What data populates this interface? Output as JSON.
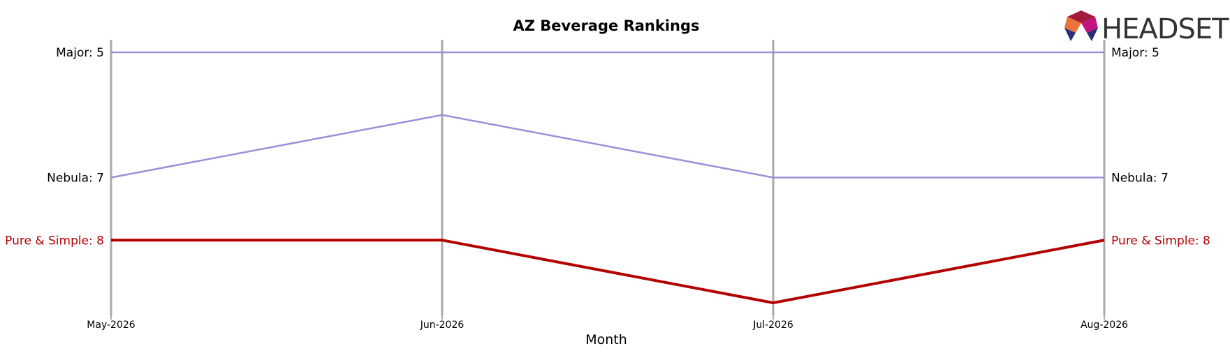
{
  "chart_data": {
    "type": "line",
    "title": "AZ Beverage Rankings",
    "xlabel": "Month",
    "ylabel": "",
    "categories": [
      "May-2026",
      "Jun-2026",
      "Jul-2026",
      "Aug-2026"
    ],
    "y_inverted": true,
    "ylim": [
      4.8,
      9.2
    ],
    "grid": "vertical lines at each month",
    "series": [
      {
        "name": "Major",
        "values": [
          5,
          5,
          5,
          5
        ],
        "color": "#9b8fd9",
        "emphasis": false,
        "start_label": "Major: 5",
        "end_label": "Major: 5"
      },
      {
        "name": "Nebula",
        "values": [
          7,
          6,
          7,
          7
        ],
        "color": "#9b8fd9",
        "emphasis": false,
        "start_label": "Nebula: 7",
        "end_label": "Nebula: 7"
      },
      {
        "name": "Pure & Simple",
        "values": [
          8,
          8,
          9,
          8
        ],
        "color": "#b30000",
        "emphasis": true,
        "start_label": "Pure & Simple: 8",
        "end_label": "Pure & Simple: 8"
      }
    ]
  },
  "logo": {
    "text": "HEADSET"
  }
}
